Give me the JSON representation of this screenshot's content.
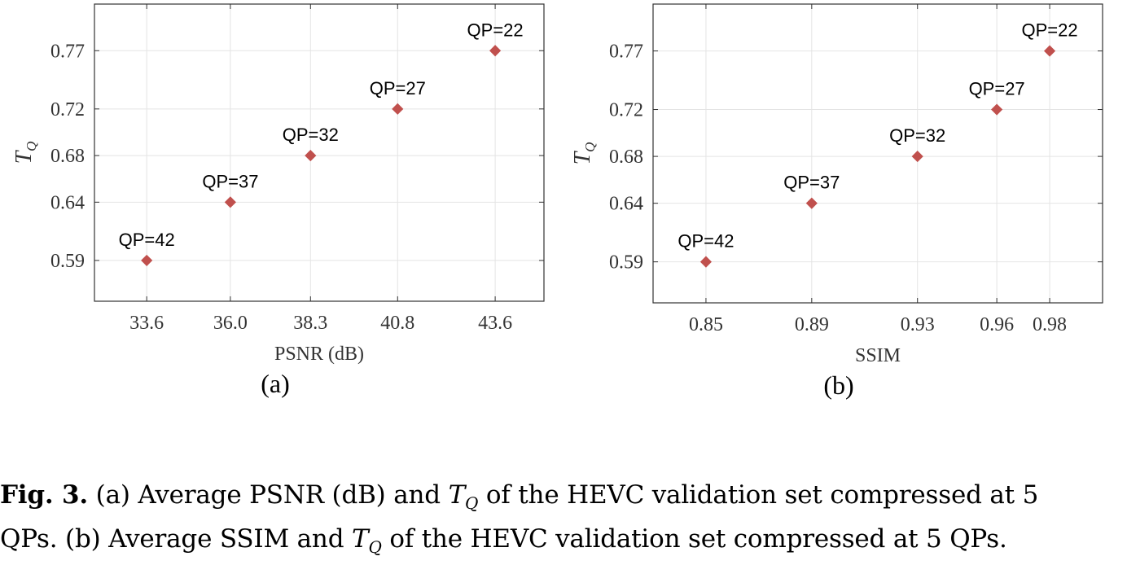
{
  "chart_data": [
    {
      "type": "scatter",
      "subcaption": "(a)",
      "xlabel": "PSNR (dB)",
      "ylabel": "T",
      "ylabel_sub": "Q",
      "x_ticks": [
        "33.6",
        "36.0",
        "38.3",
        "40.8",
        "43.6"
      ],
      "y_ticks": [
        "0.59",
        "0.64",
        "0.68",
        "0.72",
        "0.77"
      ],
      "xlim": [
        32.1,
        45.0
      ],
      "ylim": [
        0.555,
        0.81
      ],
      "grid": true,
      "points": [
        {
          "x": 33.6,
          "y": 0.59,
          "label": "QP=42"
        },
        {
          "x": 36.0,
          "y": 0.64,
          "label": "QP=37"
        },
        {
          "x": 38.3,
          "y": 0.68,
          "label": "QP=32"
        },
        {
          "x": 40.8,
          "y": 0.72,
          "label": "QP=27"
        },
        {
          "x": 43.6,
          "y": 0.77,
          "label": "QP=22"
        }
      ],
      "marker_color": "#c0504d"
    },
    {
      "type": "scatter",
      "subcaption": "(b)",
      "xlabel": "SSIM",
      "ylabel": "T",
      "ylabel_sub": "Q",
      "x_ticks": [
        "0.85",
        "0.89",
        "0.93",
        "0.96",
        "0.98"
      ],
      "y_ticks": [
        "0.59",
        "0.64",
        "0.68",
        "0.72",
        "0.77"
      ],
      "xlim": [
        0.83,
        1.0
      ],
      "ylim": [
        0.555,
        0.81
      ],
      "grid": true,
      "points": [
        {
          "x": 0.85,
          "y": 0.59,
          "label": "QP=42"
        },
        {
          "x": 0.89,
          "y": 0.64,
          "label": "QP=37"
        },
        {
          "x": 0.93,
          "y": 0.68,
          "label": "QP=32"
        },
        {
          "x": 0.96,
          "y": 0.72,
          "label": "QP=27"
        },
        {
          "x": 0.98,
          "y": 0.77,
          "label": "QP=22"
        }
      ],
      "marker_color": "#c0504d"
    }
  ],
  "caption": {
    "label": "Fig. 3.",
    "text_1": " (a) Average PSNR (dB) and ",
    "symbol": "T",
    "symbol_sub": "Q",
    "text_2": " of the HEVC validation set compressed at 5",
    "text_3": "QPs. (b) Average SSIM and ",
    "text_4": " of the HEVC validation set compressed at 5 QPs."
  }
}
